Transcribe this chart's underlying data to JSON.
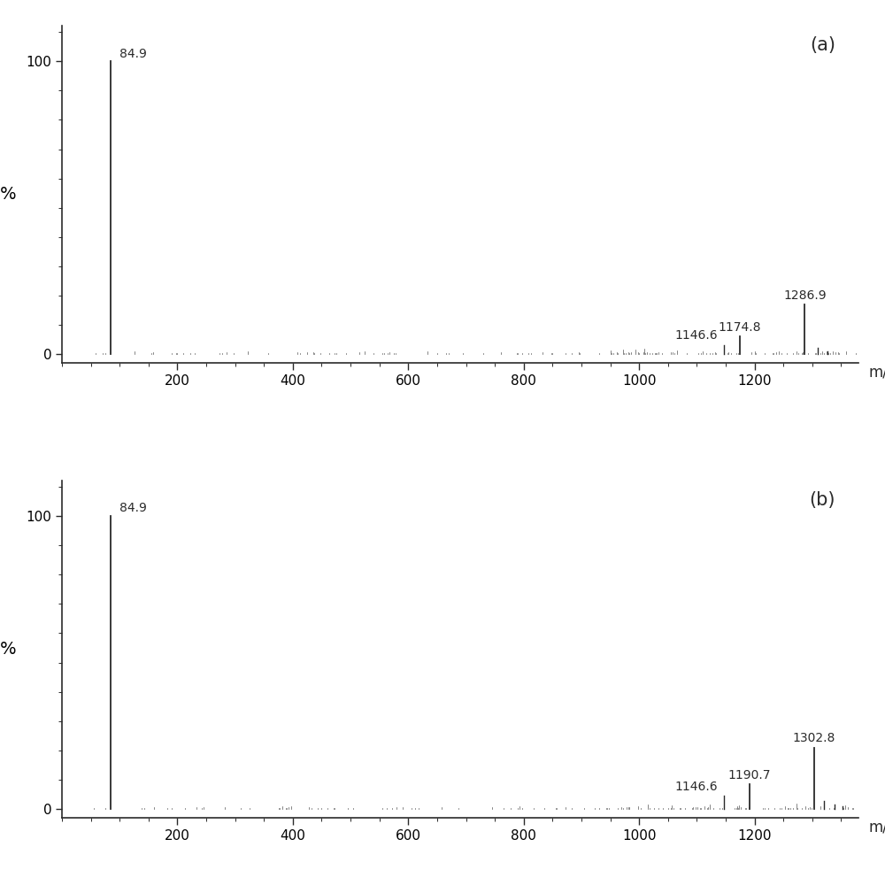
{
  "panel_a": {
    "label": "(a)",
    "peaks": [
      {
        "mz": 84.9,
        "intensity": 100.0,
        "label": "84.9"
      },
      {
        "mz": 1146.6,
        "intensity": 3.2,
        "label": "1146.6"
      },
      {
        "mz": 1174.8,
        "intensity": 6.0,
        "label": "1174.8"
      },
      {
        "mz": 1286.9,
        "intensity": 17.0,
        "label": "1286.9"
      },
      {
        "mz": 1310.0,
        "intensity": 2.2,
        "label": ""
      },
      {
        "mz": 1326.0,
        "intensity": 1.0,
        "label": ""
      }
    ],
    "noise_seed": 42
  },
  "panel_b": {
    "label": "(b)",
    "peaks": [
      {
        "mz": 84.9,
        "intensity": 100.0,
        "label": "84.9"
      },
      {
        "mz": 1146.6,
        "intensity": 4.5,
        "label": "1146.6"
      },
      {
        "mz": 1190.7,
        "intensity": 8.5,
        "label": "1190.7"
      },
      {
        "mz": 1302.8,
        "intensity": 21.0,
        "label": "1302.8"
      },
      {
        "mz": 1320.0,
        "intensity": 2.8,
        "label": ""
      },
      {
        "mz": 1338.0,
        "intensity": 1.5,
        "label": ""
      },
      {
        "mz": 1353.0,
        "intensity": 1.0,
        "label": ""
      }
    ],
    "noise_seed": 77
  },
  "xlim": [
    0,
    1380
  ],
  "ylim": [
    -3,
    112
  ],
  "xticks": [
    200,
    400,
    600,
    800,
    1000,
    1200
  ],
  "yticks": [
    0,
    100
  ],
  "xlabel": "m/z",
  "ylabel": "%",
  "background_color": "#ffffff",
  "line_color": "#2a2a2a",
  "label_fontsize": 10,
  "tick_fontsize": 11,
  "panel_label_fontsize": 15
}
